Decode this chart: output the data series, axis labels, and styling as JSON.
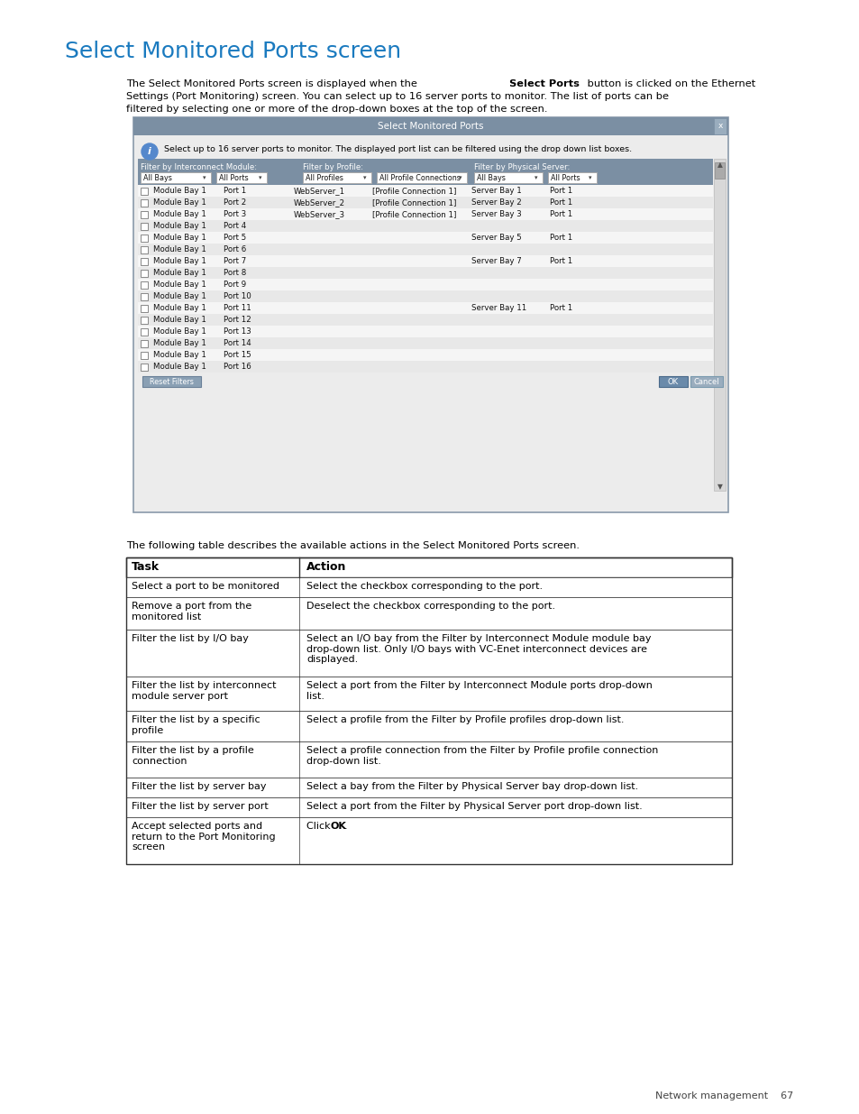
{
  "title": "Select Monitored Ports screen",
  "title_color": "#1a7abf",
  "title_fontsize": 18,
  "page_bg": "#ffffff",
  "header_bg": "#7b8fa3",
  "row_even_bg": "#f0f0f0",
  "row_odd_bg": "#e4e4e4",
  "port_rows": [
    [
      "Module Bay 1",
      "Port 1",
      "WebServer_1",
      "[Profile Connection 1]",
      "Server Bay 1",
      "Port 1"
    ],
    [
      "Module Bay 1",
      "Port 2",
      "WebServer_2",
      "[Profile Connection 1]",
      "Server Bay 2",
      "Port 1"
    ],
    [
      "Module Bay 1",
      "Port 3",
      "WebServer_3",
      "[Profile Connection 1]",
      "Server Bay 3",
      "Port 1"
    ],
    [
      "Module Bay 1",
      "Port 4",
      "",
      "",
      "",
      ""
    ],
    [
      "Module Bay 1",
      "Port 5",
      "",
      "",
      "Server Bay 5",
      "Port 1"
    ],
    [
      "Module Bay 1",
      "Port 6",
      "",
      "",
      "",
      ""
    ],
    [
      "Module Bay 1",
      "Port 7",
      "",
      "",
      "Server Bay 7",
      "Port 1"
    ],
    [
      "Module Bay 1",
      "Port 8",
      "",
      "",
      "",
      ""
    ],
    [
      "Module Bay 1",
      "Port 9",
      "",
      "",
      "",
      ""
    ],
    [
      "Module Bay 1",
      "Port 10",
      "",
      "",
      "",
      ""
    ],
    [
      "Module Bay 1",
      "Port 11",
      "",
      "",
      "Server Bay 11",
      "Port 1"
    ],
    [
      "Module Bay 1",
      "Port 12",
      "",
      "",
      "",
      ""
    ],
    [
      "Module Bay 1",
      "Port 13",
      "",
      "",
      "",
      ""
    ],
    [
      "Module Bay 1",
      "Port 14",
      "",
      "",
      "",
      ""
    ],
    [
      "Module Bay 1",
      "Port 15",
      "",
      "",
      "",
      ""
    ],
    [
      "Module Bay 1",
      "Port 16",
      "",
      "",
      "",
      ""
    ]
  ],
  "table_intro": "The following table describes the available actions in the Select Monitored Ports screen.",
  "table_rows": [
    [
      "Select a port to be monitored",
      "Select the checkbox corresponding to the port."
    ],
    [
      "Remove a port from the\nmonitored list",
      "Deselect the checkbox corresponding to the port."
    ],
    [
      "Filter the list by I/O bay",
      "Select an I/O bay from the Filter by Interconnect Module module bay\ndrop-down list. Only I/O bays with VC-Enet interconnect devices are\ndisplayed."
    ],
    [
      "Filter the list by interconnect\nmodule server port",
      "Select a port from the Filter by Interconnect Module ports drop-down\nlist."
    ],
    [
      "Filter the list by a specific\nprofile",
      "Select a profile from the Filter by Profile profiles drop-down list."
    ],
    [
      "Filter the list by a profile\nconnection",
      "Select a profile connection from the Filter by Profile profile connection\ndrop-down list."
    ],
    [
      "Filter the list by server bay",
      "Select a bay from the Filter by Physical Server bay drop-down list."
    ],
    [
      "Filter the list by server port",
      "Select a port from the Filter by Physical Server port drop-down list."
    ],
    [
      "Accept selected ports and\nreturn to the Port Monitoring\nscreen",
      "Click OK."
    ]
  ],
  "footer_text": "Network management    67"
}
